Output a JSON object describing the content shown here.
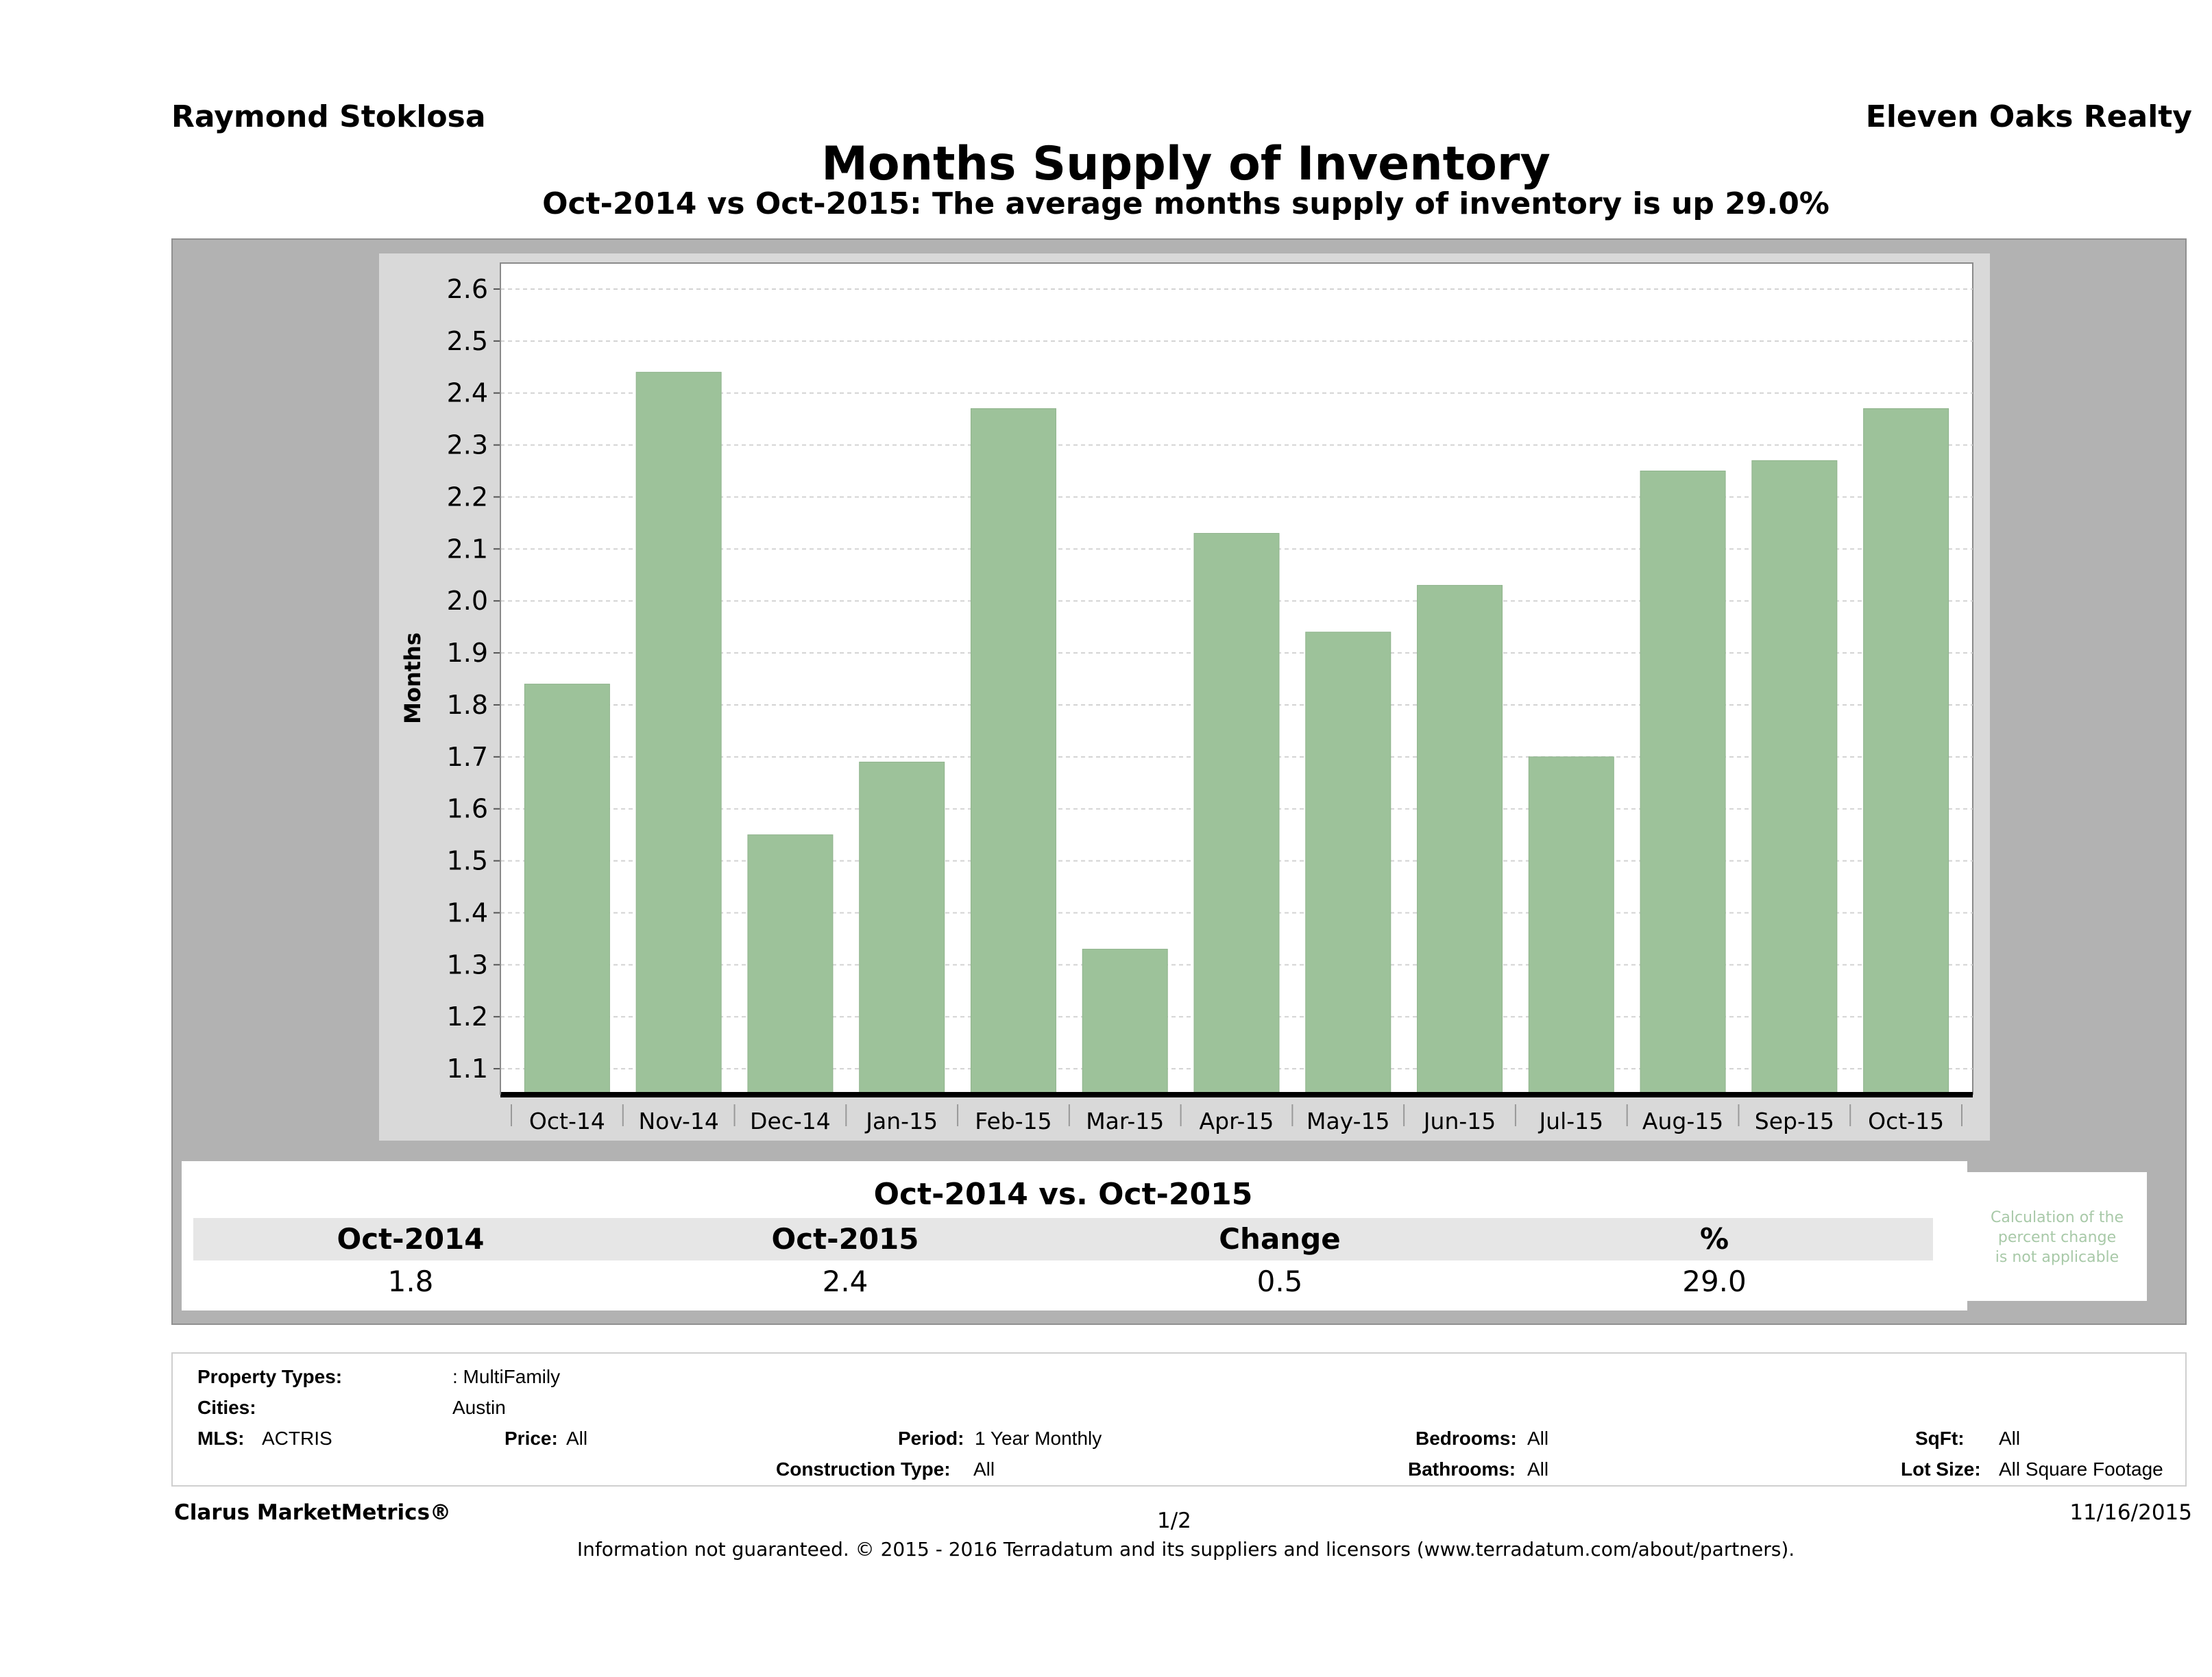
{
  "header": {
    "agent": "Raymond Stoklosa",
    "company": "Eleven Oaks Realty",
    "title": "Months Supply of Inventory",
    "subtitle": "Oct-2014 vs Oct-2015: The average months supply of inventory is up 29.0%"
  },
  "chart_data": {
    "type": "bar",
    "title": "Months Supply of Inventory",
    "subtitle": "Oct-2014 vs Oct-2015: The average months supply of inventory is up 29.0%",
    "ylabel": "Months",
    "xlabel": "",
    "categories": [
      "Oct-14",
      "Nov-14",
      "Dec-14",
      "Jan-15",
      "Feb-15",
      "Mar-15",
      "Apr-15",
      "May-15",
      "Jun-15",
      "Jul-15",
      "Aug-15",
      "Sep-15",
      "Oct-15"
    ],
    "values": [
      1.84,
      2.44,
      1.55,
      1.69,
      2.37,
      1.33,
      2.13,
      1.94,
      2.03,
      1.7,
      2.25,
      2.27,
      2.37
    ],
    "ylim": [
      1.05,
      2.65
    ],
    "yticks": [
      "1.1",
      "1.2",
      "1.3",
      "1.4",
      "1.5",
      "1.6",
      "1.7",
      "1.8",
      "1.9",
      "2.0",
      "2.1",
      "2.2",
      "2.3",
      "2.4",
      "2.5",
      "2.6"
    ],
    "grid": true,
    "bar_color": "#9dc29a"
  },
  "summary": {
    "heading": "Oct-2014 vs. Oct-2015",
    "labels": [
      "Oct-2014",
      "Oct-2015",
      "Change",
      "%"
    ],
    "values": [
      "1.8",
      "2.4",
      "0.5",
      "29.0"
    ],
    "note_line1": "Calculation of the",
    "note_line2": "percent change",
    "note_line3": "is not applicable"
  },
  "filters": {
    "property_types_label": "Property Types:",
    "property_types_value": ": MultiFamily",
    "cities_label": "Cities:",
    "cities_value": "Austin",
    "mls_label": "MLS:",
    "mls_value": "ACTRIS",
    "price_label": "Price:",
    "price_value": "All",
    "period_label": "Period:",
    "period_value": "1 Year Monthly",
    "construction_label": "Construction Type:",
    "construction_value": "All",
    "bedrooms_label": "Bedrooms:",
    "bedrooms_value": "All",
    "bathrooms_label": "Bathrooms:",
    "bathrooms_value": "All",
    "sqft_label": "SqFt:",
    "sqft_value": "All",
    "lot_label": "Lot Size:",
    "lot_value": "All Square Footage"
  },
  "footer": {
    "brand": "Clarus MarketMetrics®",
    "page": "1/2",
    "date": "11/16/2015",
    "note": "Information not guaranteed. © 2015 - 2016 Terradatum and its suppliers and licensors (www.terradatum.com/about/partners)."
  }
}
